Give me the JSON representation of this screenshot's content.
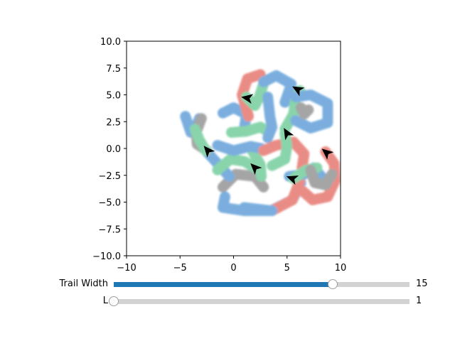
{
  "chart_data": {
    "type": "trails",
    "xlim": [
      -10,
      10
    ],
    "ylim": [
      -10,
      10
    ],
    "xticks": [
      -10,
      -5,
      0,
      5,
      10
    ],
    "yticks": [
      -10.0,
      -7.5,
      -5.0,
      -2.5,
      0.0,
      2.5,
      5.0,
      7.5,
      10.0
    ],
    "xtick_labels": [
      "−10",
      "−5",
      "0",
      "5",
      "10"
    ],
    "ytick_labels": [
      "−10.0",
      "−7.5",
      "−5.0",
      "−2.5",
      "0.0",
      "2.5",
      "5.0",
      "7.5",
      "10.0"
    ],
    "grid": false,
    "trail_colors": [
      "#6fa8dc",
      "#7fd1a4",
      "#e8837b",
      "#9e9e9e"
    ],
    "agents": [
      {
        "x": 1.3,
        "y": 4.7,
        "heading_deg": 170
      },
      {
        "x": 6.0,
        "y": 5.5,
        "heading_deg": 150
      },
      {
        "x": 5.0,
        "y": 1.4,
        "heading_deg": 120
      },
      {
        "x": -2.4,
        "y": -0.2,
        "heading_deg": 130
      },
      {
        "x": 2.0,
        "y": -1.8,
        "heading_deg": 135
      },
      {
        "x": 8.7,
        "y": -0.4,
        "heading_deg": 140
      },
      {
        "x": 5.5,
        "y": -2.8,
        "heading_deg": 160
      }
    ],
    "trails": [
      {
        "color": "#6fa8dc",
        "points": [
          [
            1.0,
            -5.5
          ],
          [
            3.5,
            -5.8
          ],
          [
            5.5,
            -4.8
          ],
          [
            6.3,
            -3.2
          ]
        ]
      },
      {
        "color": "#e8837b",
        "points": [
          [
            3.6,
            -5.8
          ],
          [
            5.5,
            -4.8
          ],
          [
            6.2,
            -3.0
          ]
        ]
      },
      {
        "color": "#9e9e9e",
        "points": [
          [
            -1.0,
            -3.6
          ],
          [
            0.2,
            -2.4
          ],
          [
            2.0,
            -2.6
          ],
          [
            2.8,
            -3.6
          ]
        ]
      },
      {
        "color": "#6fa8dc",
        "points": [
          [
            -0.4,
            -2.6
          ],
          [
            -1.5,
            -1.4
          ],
          [
            -2.5,
            -0.3
          ]
        ]
      },
      {
        "color": "#6fa8dc",
        "points": [
          [
            -0.8,
            -4.5
          ],
          [
            -1.0,
            -5.5
          ],
          [
            1.0,
            -5.8
          ],
          [
            3.6,
            -5.8
          ]
        ]
      },
      {
        "color": "#7fd1a4",
        "points": [
          [
            -1.5,
            -2.0
          ],
          [
            -0.3,
            -1.0
          ],
          [
            1.0,
            -1.2
          ],
          [
            2.0,
            -1.8
          ]
        ]
      },
      {
        "color": "#7fd1a4",
        "points": [
          [
            1.8,
            -0.3
          ],
          [
            2.5,
            -1.5
          ],
          [
            2.6,
            -2.6
          ]
        ]
      },
      {
        "color": "#6fa8dc",
        "points": [
          [
            -4.5,
            3.0
          ],
          [
            -4.0,
            1.5
          ],
          [
            -3.6,
            1.8
          ],
          [
            -3.2,
            2.8
          ]
        ]
      },
      {
        "color": "#9e9e9e",
        "points": [
          [
            -3.0,
            2.8
          ],
          [
            -3.5,
            1.5
          ],
          [
            -3.4,
            0.4
          ],
          [
            -2.5,
            -0.2
          ]
        ]
      },
      {
        "color": "#7fd1a4",
        "points": [
          [
            -3.6,
            1.8
          ],
          [
            -3.2,
            0.8
          ],
          [
            -2.6,
            -0.2
          ]
        ]
      },
      {
        "color": "#6fa8dc",
        "points": [
          [
            -1.0,
            3.3
          ],
          [
            0.0,
            3.8
          ],
          [
            1.2,
            3.2
          ],
          [
            1.0,
            1.8
          ]
        ]
      },
      {
        "color": "#7fd1a4",
        "points": [
          [
            -0.2,
            1.5
          ],
          [
            1.2,
            1.6
          ],
          [
            2.5,
            2.0
          ],
          [
            3.2,
            1.6
          ]
        ]
      },
      {
        "color": "#6fa8dc",
        "points": [
          [
            -1.5,
            0.3
          ],
          [
            0.0,
            -0.2
          ],
          [
            1.6,
            0.2
          ],
          [
            2.6,
            0.0
          ]
        ]
      },
      {
        "color": "#e8837b",
        "points": [
          [
            1.4,
            3.0
          ],
          [
            0.8,
            5.0
          ],
          [
            1.3,
            6.5
          ],
          [
            2.5,
            6.9
          ]
        ]
      },
      {
        "color": "#7fd1a4",
        "points": [
          [
            1.2,
            4.8
          ],
          [
            2.0,
            4.0
          ],
          [
            2.4,
            4.8
          ],
          [
            2.8,
            6.0
          ]
        ]
      },
      {
        "color": "#6fa8dc",
        "points": [
          [
            2.8,
            6.2
          ],
          [
            4.0,
            6.8
          ],
          [
            5.4,
            6.0
          ],
          [
            4.8,
            4.3
          ]
        ]
      },
      {
        "color": "#6fa8dc",
        "points": [
          [
            3.2,
            4.8
          ],
          [
            3.4,
            3.0
          ],
          [
            3.6,
            2.0
          ],
          [
            3.2,
            1.0
          ]
        ]
      },
      {
        "color": "#7fd1a4",
        "points": [
          [
            4.8,
            1.8
          ],
          [
            5.6,
            3.2
          ],
          [
            5.8,
            4.6
          ],
          [
            6.2,
            5.4
          ]
        ]
      },
      {
        "color": "#6fa8dc",
        "points": [
          [
            5.8,
            4.8
          ],
          [
            7.2,
            5.0
          ],
          [
            8.8,
            4.2
          ],
          [
            8.8,
            2.4
          ],
          [
            7.2,
            1.9
          ],
          [
            5.8,
            2.6
          ]
        ]
      },
      {
        "color": "#9e9e9e",
        "points": [
          [
            6.3,
            3.8
          ],
          [
            6.6,
            3.2
          ],
          [
            7.0,
            3.6
          ]
        ]
      },
      {
        "color": "#e8837b",
        "points": [
          [
            2.8,
            -0.2
          ],
          [
            4.0,
            0.3
          ],
          [
            5.6,
            0.6
          ],
          [
            6.6,
            -0.5
          ],
          [
            6.4,
            -1.8
          ]
        ]
      },
      {
        "color": "#7fd1a4",
        "points": [
          [
            4.8,
            1.4
          ],
          [
            5.0,
            0.2
          ],
          [
            4.8,
            -1.0
          ],
          [
            3.6,
            -1.6
          ]
        ]
      },
      {
        "color": "#6fa8dc",
        "points": [
          [
            5.2,
            -2.6
          ],
          [
            6.6,
            -2.4
          ],
          [
            7.5,
            -1.8
          ],
          [
            8.2,
            -2.6
          ]
        ]
      },
      {
        "color": "#7fd1a4",
        "points": [
          [
            5.6,
            -2.8
          ],
          [
            6.8,
            -2.0
          ],
          [
            7.8,
            -1.8
          ]
        ]
      },
      {
        "color": "#e8837b",
        "points": [
          [
            8.6,
            -0.3
          ],
          [
            9.4,
            -1.4
          ],
          [
            9.5,
            -3.0
          ],
          [
            8.8,
            -4.5
          ],
          [
            7.4,
            -4.8
          ],
          [
            6.5,
            -4.0
          ]
        ]
      },
      {
        "color": "#9e9e9e",
        "points": [
          [
            7.2,
            -2.0
          ],
          [
            7.6,
            -3.2
          ],
          [
            8.6,
            -3.4
          ],
          [
            9.2,
            -2.4
          ]
        ]
      }
    ]
  },
  "sliders": [
    {
      "label": "Trail Width",
      "value_text": "15",
      "fraction": 0.74
    },
    {
      "label": "L",
      "value_text": "1",
      "fraction": 0.0
    }
  ]
}
